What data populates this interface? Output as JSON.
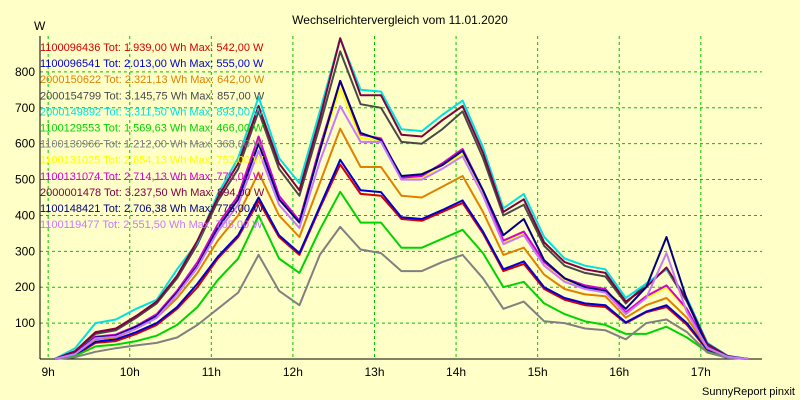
{
  "chart_data": {
    "type": "line",
    "title": "Wechselrichtervergleich vom 11.01.2020",
    "ylabel": "W",
    "xlabel": "",
    "footer": "SunnyReport pinxit",
    "ylim": [
      0,
      900
    ],
    "xlim": [
      8.9,
      17.75
    ],
    "yticks": [
      100,
      200,
      300,
      400,
      500,
      600,
      700,
      800
    ],
    "xticks": [
      {
        "v": 9,
        "label": "9h"
      },
      {
        "v": 10,
        "label": "10h"
      },
      {
        "v": 11,
        "label": "11h"
      },
      {
        "v": 12,
        "label": "12h"
      },
      {
        "v": 13,
        "label": "13h"
      },
      {
        "v": 14,
        "label": "14h"
      },
      {
        "v": 15,
        "label": "15h"
      },
      {
        "v": 16,
        "label": "16h"
      },
      {
        "v": 17,
        "label": "17h"
      }
    ],
    "grid": true,
    "x": [
      9.08,
      9.33,
      9.58,
      9.83,
      10.08,
      10.33,
      10.58,
      10.83,
      11.08,
      11.33,
      11.58,
      11.83,
      12.08,
      12.33,
      12.58,
      12.83,
      13.08,
      13.33,
      13.58,
      13.83,
      14.08,
      14.33,
      14.58,
      14.83,
      15.08,
      15.33,
      15.58,
      15.83,
      16.08,
      16.33,
      16.58,
      16.83,
      17.08,
      17.33,
      17.58
    ],
    "series": [
      {
        "name": "1100096436",
        "label": "1100096436 Tot: 1.939,00 Wh Max: 542,00 W",
        "color": "#d40000",
        "values": [
          0,
          10,
          45,
          50,
          70,
          95,
          140,
          200,
          280,
          340,
          440,
          340,
          290,
          420,
          542,
          460,
          455,
          390,
          385,
          410,
          435,
          350,
          245,
          265,
          195,
          165,
          150,
          145,
          100,
          130,
          145,
          95,
          25,
          5,
          0
        ]
      },
      {
        "name": "1100096541",
        "label": "1100096541 Tot: 2.013,00 Wh Max: 555,00 W",
        "color": "#0000d4",
        "values": [
          0,
          12,
          48,
          55,
          75,
          100,
          145,
          210,
          285,
          345,
          450,
          345,
          295,
          425,
          555,
          470,
          465,
          395,
          390,
          415,
          442,
          355,
          250,
          272,
          200,
          170,
          155,
          150,
          102,
          132,
          150,
          100,
          27,
          6,
          0
        ]
      },
      {
        "name": "2000150622",
        "label": "2000150622 Tot: 2.321,13 Wh Max: 642,00 W",
        "color": "#e08000",
        "values": [
          0,
          14,
          55,
          60,
          85,
          115,
          170,
          240,
          330,
          400,
          520,
          400,
          340,
          490,
          642,
          535,
          535,
          455,
          450,
          480,
          510,
          410,
          290,
          310,
          235,
          195,
          180,
          175,
          115,
          150,
          170,
          115,
          30,
          6,
          0
        ]
      },
      {
        "name": "2000154799",
        "label": "2000154799 Tot: 3.145,75 Wh Max: 857,00 W",
        "color": "#484848",
        "values": [
          0,
          20,
          70,
          80,
          115,
          155,
          225,
          320,
          440,
          530,
          690,
          530,
          455,
          650,
          857,
          710,
          700,
          605,
          600,
          640,
          690,
          560,
          400,
          430,
          315,
          260,
          240,
          230,
          155,
          210,
          250,
          160,
          40,
          8,
          0
        ]
      },
      {
        "name": "2000149892",
        "label": "2000149892 Tot: 3.311,50 Wh Max: 893,00 W",
        "color": "#00e0e0",
        "values": [
          0,
          30,
          100,
          110,
          140,
          165,
          250,
          325,
          460,
          560,
          730,
          560,
          490,
          690,
          893,
          750,
          745,
          640,
          635,
          680,
          720,
          590,
          420,
          460,
          340,
          280,
          260,
          250,
          170,
          210,
          250,
          170,
          45,
          9,
          0
        ]
      },
      {
        "name": "1100129553",
        "label": "1100129553 Tot: 1.569,63 Wh Max: 466,00 W",
        "color": "#00d400",
        "values": [
          0,
          8,
          35,
          40,
          50,
          65,
          95,
          145,
          220,
          280,
          400,
          280,
          240,
          360,
          466,
          380,
          380,
          310,
          310,
          335,
          360,
          295,
          200,
          215,
          155,
          125,
          105,
          95,
          70,
          70,
          90,
          60,
          20,
          4,
          0
        ]
      },
      {
        "name": "1100130966",
        "label": "1100130966 Tot: 1.212,00 Wh Max: 368,00 W",
        "color": "#808080",
        "values": [
          0,
          5,
          20,
          30,
          38,
          45,
          60,
          95,
          140,
          185,
          290,
          190,
          150,
          290,
          368,
          305,
          295,
          245,
          245,
          270,
          290,
          225,
          140,
          160,
          105,
          100,
          85,
          80,
          55,
          100,
          110,
          75,
          18,
          3,
          0
        ]
      },
      {
        "name": "1100131025",
        "label": "1100131025 Tot: 2.654,13 Wh Max: 753,00 W",
        "color": "#ffff00",
        "values": [
          0,
          15,
          60,
          65,
          90,
          120,
          185,
          265,
          370,
          450,
          610,
          450,
          380,
          580,
          753,
          615,
          610,
          500,
          505,
          540,
          570,
          460,
          325,
          350,
          265,
          220,
          200,
          190,
          125,
          170,
          200,
          135,
          33,
          7,
          0
        ]
      },
      {
        "name": "1100131074",
        "label": "1100131074 Tot: 2.714,13 Wh Max: 775,00 W",
        "color": "#d400d4",
        "values": [
          0,
          15,
          62,
          68,
          92,
          125,
          190,
          270,
          375,
          455,
          620,
          455,
          385,
          590,
          775,
          625,
          615,
          505,
          510,
          545,
          585,
          470,
          330,
          355,
          270,
          225,
          205,
          195,
          130,
          175,
          205,
          140,
          34,
          7,
          0
        ]
      },
      {
        "name": "2000001478",
        "label": "2000001478 Tot: 3.237,50 Wh Max: 894,00 W",
        "color": "#800040",
        "values": [
          0,
          22,
          75,
          85,
          120,
          160,
          232,
          330,
          450,
          545,
          705,
          545,
          470,
          670,
          894,
          735,
          735,
          625,
          620,
          665,
          705,
          575,
          410,
          445,
          325,
          270,
          250,
          240,
          160,
          200,
          255,
          165,
          42,
          8,
          0
        ]
      },
      {
        "name": "1100148421",
        "label": "1100148421 Tot: 2.706,38 Wh Max: 775,00 W",
        "color": "#000080",
        "values": [
          0,
          15,
          60,
          65,
          90,
          120,
          185,
          260,
          365,
          445,
          600,
          445,
          380,
          580,
          775,
          630,
          610,
          510,
          515,
          540,
          580,
          470,
          345,
          390,
          275,
          225,
          200,
          190,
          140,
          200,
          340,
          165,
          33,
          7,
          0
        ]
      },
      {
        "name": "1100119477",
        "label": "1100119477 Tot: 2.551,50 Wh Max: 705,00 W",
        "color": "#c878ff",
        "values": [
          0,
          14,
          58,
          62,
          85,
          115,
          180,
          255,
          355,
          430,
          580,
          430,
          365,
          550,
          705,
          605,
          605,
          500,
          500,
          530,
          565,
          455,
          320,
          345,
          260,
          215,
          195,
          185,
          125,
          170,
          295,
          130,
          32,
          6,
          0
        ]
      }
    ]
  }
}
